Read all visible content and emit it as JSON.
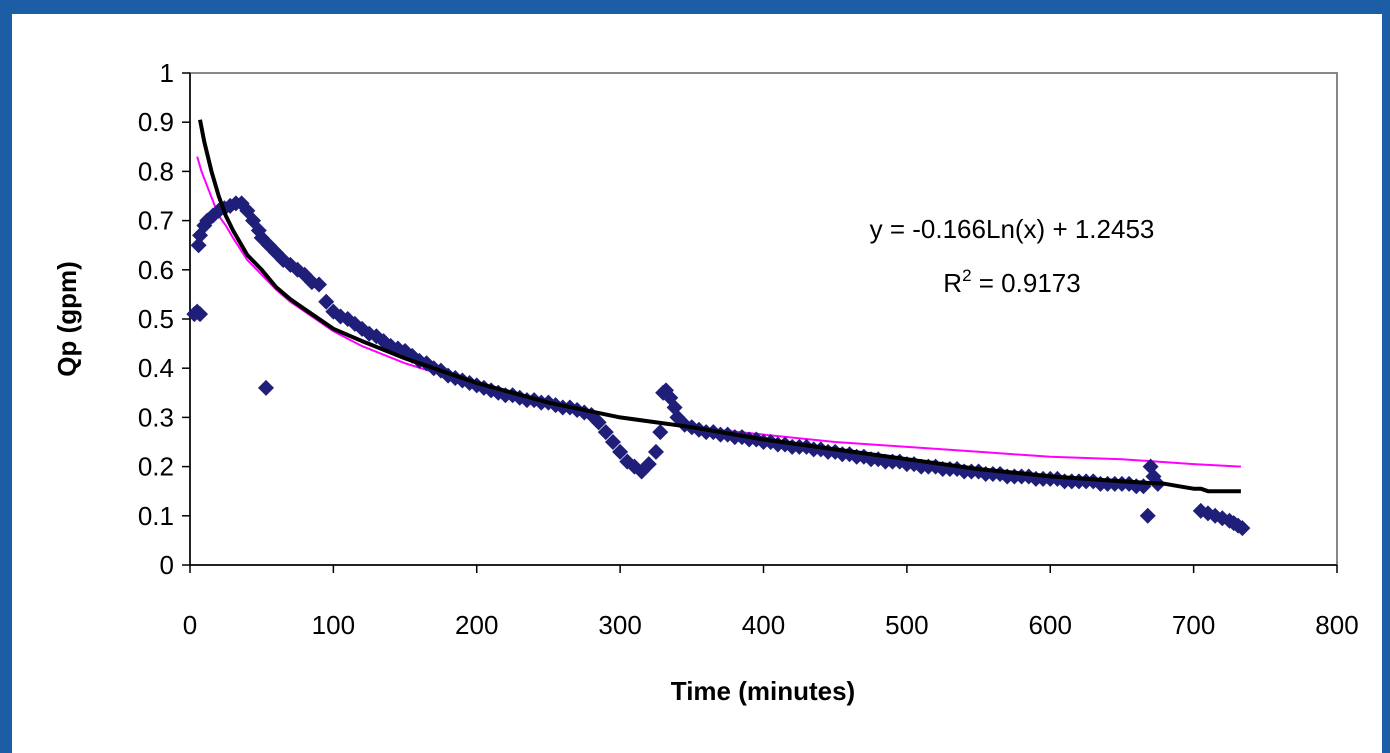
{
  "chart_data": {
    "type": "scatter",
    "title": "",
    "xlabel": "Time (minutes)",
    "ylabel": "Qp (gpm)",
    "xlim": [
      0,
      800
    ],
    "ylim": [
      0,
      1
    ],
    "x_ticks": [
      "0",
      "100",
      "200",
      "300",
      "400",
      "500",
      "600",
      "700",
      "800"
    ],
    "y_ticks": [
      "0",
      "0.1",
      "0.2",
      "0.3",
      "0.4",
      "0.5",
      "0.6",
      "0.7",
      "0.8",
      "0.9",
      "1"
    ],
    "grid": false,
    "equation": "y = -0.166Ln(x) + 1.2453",
    "r_squared_label": "R",
    "r_squared_exponent": "2",
    "r_squared_value": " = 0.9173",
    "colors": {
      "points": "#1f1f7a",
      "trendline": "#000000",
      "model": "#ff00ff",
      "axis": "#000000",
      "frame": "#888888",
      "background": "#1b5ea6"
    },
    "series": [
      {
        "marker": "diamond",
        "points": [
          [
            3,
            0.51
          ],
          [
            5,
            0.515
          ],
          [
            7,
            0.51
          ],
          [
            6,
            0.65
          ],
          [
            7,
            0.67
          ],
          [
            10,
            0.69
          ],
          [
            12,
            0.7
          ],
          [
            16,
            0.71
          ],
          [
            20,
            0.72
          ],
          [
            24,
            0.725
          ],
          [
            28,
            0.73
          ],
          [
            32,
            0.735
          ],
          [
            36,
            0.735
          ],
          [
            40,
            0.72
          ],
          [
            44,
            0.7
          ],
          [
            48,
            0.68
          ],
          [
            50,
            0.665
          ],
          [
            53,
            0.36
          ],
          [
            55,
            0.65
          ],
          [
            60,
            0.635
          ],
          [
            65,
            0.62
          ],
          [
            70,
            0.61
          ],
          [
            75,
            0.6
          ],
          [
            80,
            0.59
          ],
          [
            85,
            0.575
          ],
          [
            90,
            0.57
          ],
          [
            95,
            0.535
          ],
          [
            100,
            0.515
          ],
          [
            105,
            0.505
          ],
          [
            110,
            0.5
          ],
          [
            115,
            0.49
          ],
          [
            120,
            0.48
          ],
          [
            125,
            0.47
          ],
          [
            130,
            0.465
          ],
          [
            135,
            0.455
          ],
          [
            140,
            0.445
          ],
          [
            145,
            0.44
          ],
          [
            150,
            0.435
          ],
          [
            155,
            0.425
          ],
          [
            160,
            0.415
          ],
          [
            165,
            0.41
          ],
          [
            170,
            0.4
          ],
          [
            175,
            0.395
          ],
          [
            180,
            0.385
          ],
          [
            185,
            0.38
          ],
          [
            190,
            0.375
          ],
          [
            195,
            0.37
          ],
          [
            200,
            0.365
          ],
          [
            205,
            0.36
          ],
          [
            210,
            0.355
          ],
          [
            215,
            0.35
          ],
          [
            220,
            0.345
          ],
          [
            225,
            0.345
          ],
          [
            230,
            0.34
          ],
          [
            235,
            0.335
          ],
          [
            240,
            0.335
          ],
          [
            245,
            0.33
          ],
          [
            250,
            0.33
          ],
          [
            255,
            0.325
          ],
          [
            260,
            0.32
          ],
          [
            265,
            0.32
          ],
          [
            270,
            0.315
          ],
          [
            275,
            0.31
          ],
          [
            280,
            0.305
          ],
          [
            285,
            0.29
          ],
          [
            290,
            0.27
          ],
          [
            295,
            0.25
          ],
          [
            300,
            0.23
          ],
          [
            305,
            0.21
          ],
          [
            310,
            0.2
          ],
          [
            315,
            0.19
          ],
          [
            320,
            0.205
          ],
          [
            325,
            0.23
          ],
          [
            328,
            0.27
          ],
          [
            330,
            0.35
          ],
          [
            332,
            0.355
          ],
          [
            335,
            0.34
          ],
          [
            338,
            0.32
          ],
          [
            340,
            0.3
          ],
          [
            345,
            0.285
          ],
          [
            350,
            0.28
          ],
          [
            355,
            0.275
          ],
          [
            360,
            0.27
          ],
          [
            365,
            0.27
          ],
          [
            370,
            0.265
          ],
          [
            375,
            0.265
          ],
          [
            380,
            0.26
          ],
          [
            385,
            0.26
          ],
          [
            390,
            0.255
          ],
          [
            395,
            0.255
          ],
          [
            400,
            0.25
          ],
          [
            405,
            0.25
          ],
          [
            410,
            0.245
          ],
          [
            415,
            0.245
          ],
          [
            420,
            0.24
          ],
          [
            425,
            0.24
          ],
          [
            430,
            0.24
          ],
          [
            435,
            0.235
          ],
          [
            440,
            0.235
          ],
          [
            445,
            0.23
          ],
          [
            450,
            0.23
          ],
          [
            455,
            0.225
          ],
          [
            460,
            0.225
          ],
          [
            465,
            0.22
          ],
          [
            470,
            0.22
          ],
          [
            475,
            0.215
          ],
          [
            480,
            0.215
          ],
          [
            485,
            0.21
          ],
          [
            490,
            0.21
          ],
          [
            495,
            0.21
          ],
          [
            500,
            0.205
          ],
          [
            505,
            0.205
          ],
          [
            510,
            0.2
          ],
          [
            515,
            0.2
          ],
          [
            520,
            0.2
          ],
          [
            525,
            0.195
          ],
          [
            530,
            0.195
          ],
          [
            535,
            0.195
          ],
          [
            540,
            0.19
          ],
          [
            545,
            0.19
          ],
          [
            550,
            0.19
          ],
          [
            555,
            0.185
          ],
          [
            560,
            0.185
          ],
          [
            565,
            0.185
          ],
          [
            570,
            0.18
          ],
          [
            575,
            0.18
          ],
          [
            580,
            0.18
          ],
          [
            585,
            0.18
          ],
          [
            590,
            0.175
          ],
          [
            595,
            0.175
          ],
          [
            600,
            0.175
          ],
          [
            605,
            0.175
          ],
          [
            610,
            0.17
          ],
          [
            615,
            0.17
          ],
          [
            620,
            0.17
          ],
          [
            625,
            0.17
          ],
          [
            630,
            0.17
          ],
          [
            635,
            0.165
          ],
          [
            640,
            0.165
          ],
          [
            645,
            0.165
          ],
          [
            650,
            0.165
          ],
          [
            655,
            0.165
          ],
          [
            660,
            0.16
          ],
          [
            665,
            0.16
          ],
          [
            668,
            0.1
          ],
          [
            670,
            0.2
          ],
          [
            672,
            0.18
          ],
          [
            675,
            0.165
          ],
          [
            705,
            0.11
          ],
          [
            710,
            0.105
          ],
          [
            715,
            0.1
          ],
          [
            720,
            0.095
          ],
          [
            725,
            0.09
          ],
          [
            728,
            0.085
          ],
          [
            731,
            0.08
          ],
          [
            734,
            0.075
          ]
        ]
      },
      {
        "type": "line",
        "role": "trendline",
        "points": [
          [
            7,
            0.905
          ],
          [
            10,
            0.86
          ],
          [
            15,
            0.8
          ],
          [
            20,
            0.75
          ],
          [
            25,
            0.71
          ],
          [
            30,
            0.68
          ],
          [
            40,
            0.63
          ],
          [
            50,
            0.6
          ],
          [
            60,
            0.565
          ],
          [
            70,
            0.54
          ],
          [
            80,
            0.52
          ],
          [
            100,
            0.48
          ],
          [
            120,
            0.455
          ],
          [
            150,
            0.42
          ],
          [
            175,
            0.395
          ],
          [
            200,
            0.37
          ],
          [
            250,
            0.33
          ],
          [
            300,
            0.3
          ],
          [
            350,
            0.28
          ],
          [
            400,
            0.255
          ],
          [
            450,
            0.235
          ],
          [
            500,
            0.215
          ],
          [
            550,
            0.195
          ],
          [
            600,
            0.18
          ],
          [
            650,
            0.17
          ],
          [
            680,
            0.165
          ],
          [
            690,
            0.16
          ],
          [
            700,
            0.155
          ],
          [
            705,
            0.155
          ],
          [
            710,
            0.15
          ],
          [
            720,
            0.15
          ],
          [
            733,
            0.15
          ]
        ]
      },
      {
        "type": "line",
        "role": "model",
        "points": [
          [
            5,
            0.83
          ],
          [
            8,
            0.8
          ],
          [
            12,
            0.77
          ],
          [
            16,
            0.74
          ],
          [
            20,
            0.71
          ],
          [
            25,
            0.69
          ],
          [
            30,
            0.665
          ],
          [
            40,
            0.62
          ],
          [
            50,
            0.59
          ],
          [
            60,
            0.56
          ],
          [
            70,
            0.535
          ],
          [
            80,
            0.515
          ],
          [
            100,
            0.475
          ],
          [
            120,
            0.445
          ],
          [
            150,
            0.41
          ],
          [
            200,
            0.365
          ],
          [
            250,
            0.33
          ],
          [
            300,
            0.3
          ],
          [
            350,
            0.28
          ],
          [
            400,
            0.265
          ],
          [
            450,
            0.25
          ],
          [
            500,
            0.24
          ],
          [
            550,
            0.23
          ],
          [
            600,
            0.22
          ],
          [
            650,
            0.215
          ],
          [
            700,
            0.205
          ],
          [
            733,
            0.2
          ]
        ]
      }
    ]
  }
}
